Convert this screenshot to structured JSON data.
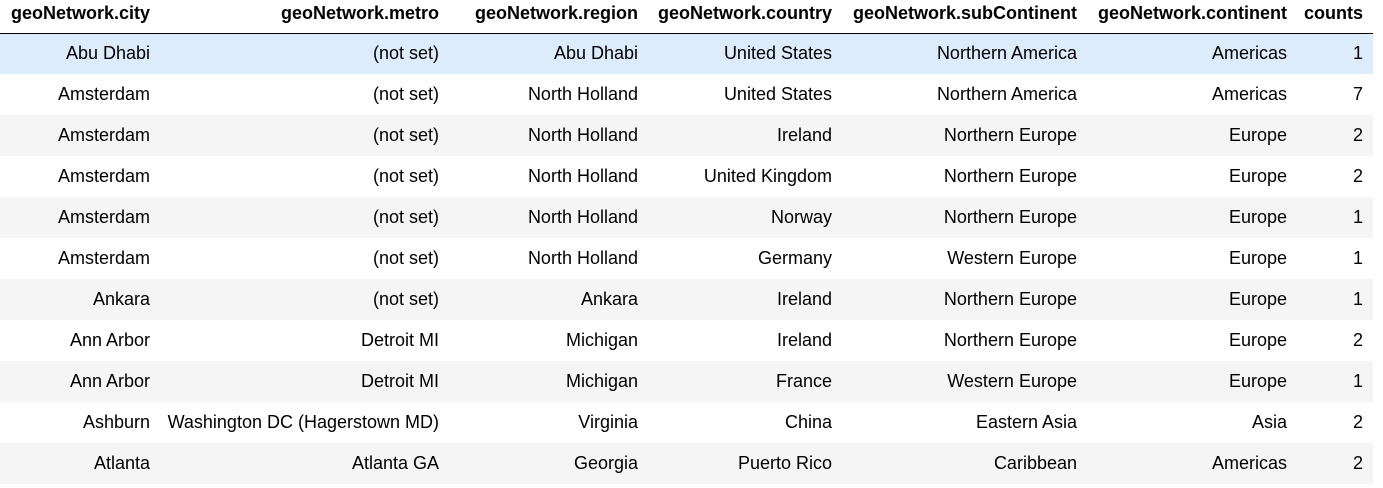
{
  "columns": [
    "geoNetwork.city",
    "geoNetwork.metro",
    "geoNetwork.region",
    "geoNetwork.country",
    "geoNetwork.subContinent",
    "geoNetwork.continent",
    "counts"
  ],
  "rows": [
    [
      "Abu Dhabi",
      "(not set)",
      "Abu Dhabi",
      "United States",
      "Northern America",
      "Americas",
      "1"
    ],
    [
      "Amsterdam",
      "(not set)",
      "North Holland",
      "United States",
      "Northern America",
      "Americas",
      "7"
    ],
    [
      "Amsterdam",
      "(not set)",
      "North Holland",
      "Ireland",
      "Northern Europe",
      "Europe",
      "2"
    ],
    [
      "Amsterdam",
      "(not set)",
      "North Holland",
      "United Kingdom",
      "Northern Europe",
      "Europe",
      "2"
    ],
    [
      "Amsterdam",
      "(not set)",
      "North Holland",
      "Norway",
      "Northern Europe",
      "Europe",
      "1"
    ],
    [
      "Amsterdam",
      "(not set)",
      "North Holland",
      "Germany",
      "Western Europe",
      "Europe",
      "1"
    ],
    [
      "Ankara",
      "(not set)",
      "Ankara",
      "Ireland",
      "Northern Europe",
      "Europe",
      "1"
    ],
    [
      "Ann Arbor",
      "Detroit MI",
      "Michigan",
      "Ireland",
      "Northern Europe",
      "Europe",
      "2"
    ],
    [
      "Ann Arbor",
      "Detroit MI",
      "Michigan",
      "France",
      "Western Europe",
      "Europe",
      "1"
    ],
    [
      "Ashburn",
      "Washington DC (Hagerstown MD)",
      "Virginia",
      "China",
      "Eastern Asia",
      "Asia",
      "2"
    ],
    [
      "Atlanta",
      "Atlanta GA",
      "Georgia",
      "Puerto Rico",
      "Caribbean",
      "Americas",
      "2"
    ]
  ],
  "colors": {
    "highlight_row": "#dcecfb",
    "striped_row": "#f5f5f5",
    "header_rule": "#000000"
  }
}
